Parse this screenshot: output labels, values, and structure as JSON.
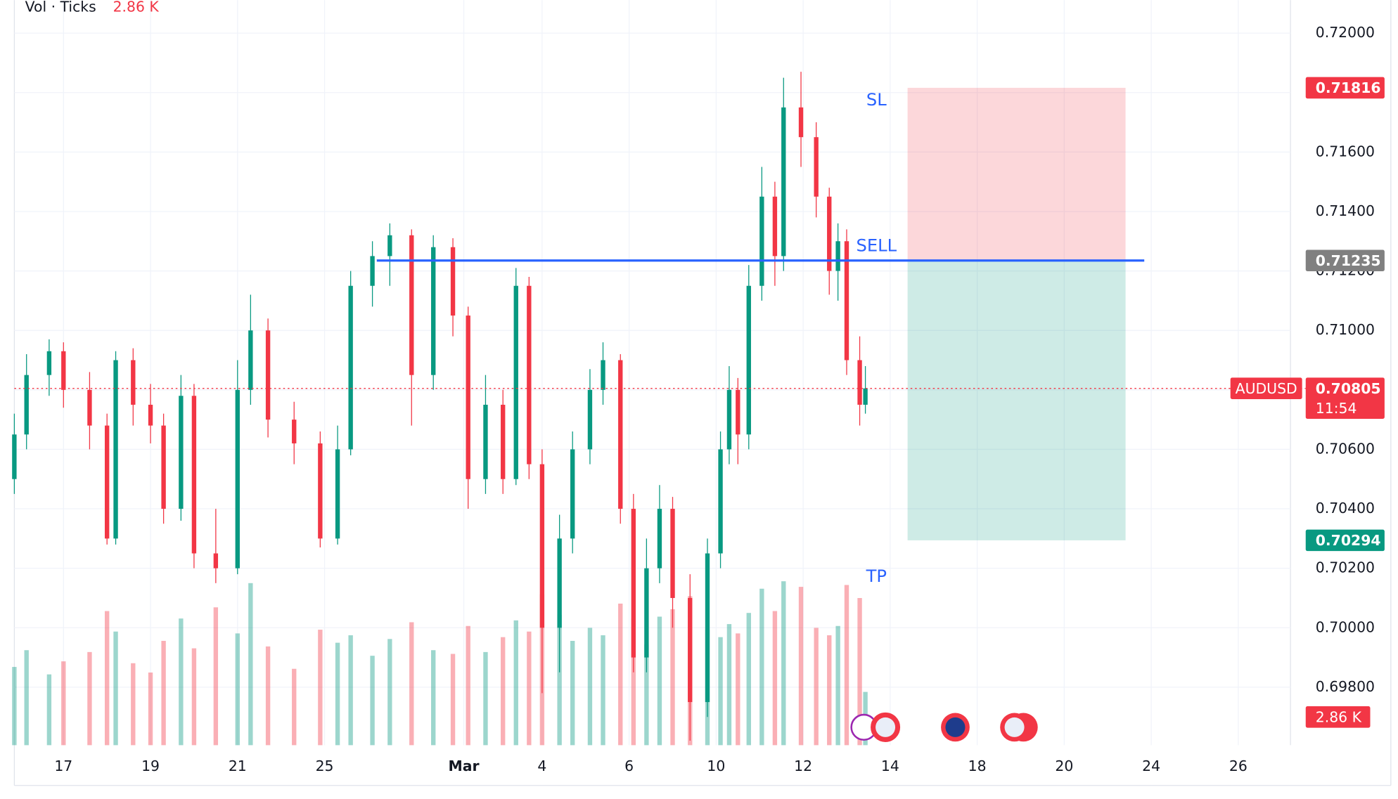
{
  "chart_data": {
    "type": "candlestick",
    "symbol": "AUDUSD",
    "up_color": "#089981",
    "down_color": "#f23645",
    "x": [
      -1.13,
      -0.85,
      -0.33,
      0,
      0.6,
      1,
      1.2,
      1.6,
      2,
      2.3,
      2.7,
      3,
      3.5,
      4,
      4.3,
      4.7,
      5.3,
      5.9,
      6.3,
      6.6,
      7.1,
      7.5,
      8,
      8.5,
      8.95,
      9.3,
      9.7,
      10.1,
      10.4,
      10.7,
      11,
      11.4,
      11.7,
      12.1,
      12.4,
      12.8,
      13.1,
      13.4,
      13.7,
      14,
      14.4,
      14.8,
      15.1,
      15.3,
      15.5,
      15.75,
      16.05,
      16.35,
      16.55,
      16.95,
      17.3,
      17.6,
      17.8,
      18,
      18.3,
      18.43
    ],
    "open": [
      0.705,
      0.7065,
      0.7085,
      0.7093,
      0.708,
      0.7068,
      0.703,
      0.709,
      0.7075,
      0.7068,
      0.704,
      0.7078,
      0.7025,
      0.702,
      0.708,
      0.71,
      0.707,
      0.7062,
      0.703,
      0.706,
      0.7115,
      0.7125,
      0.7132,
      0.7085,
      0.7128,
      0.7105,
      0.705,
      0.7075,
      0.705,
      0.7115,
      0.7055,
      0.7,
      0.703,
      0.706,
      0.708,
      0.709,
      0.704,
      0.699,
      0.702,
      0.704,
      0.701,
      0.6975,
      0.7025,
      0.706,
      0.708,
      0.7065,
      0.7115,
      0.7145,
      0.7125,
      0.7175,
      0.7165,
      0.7145,
      0.712,
      0.713,
      0.709,
      0.7075
    ],
    "high": [
      0.7072,
      0.7092,
      0.7097,
      0.7096,
      0.7086,
      0.7072,
      0.7093,
      0.7094,
      0.7082,
      0.7072,
      0.7085,
      0.7082,
      0.704,
      0.709,
      0.7112,
      0.7104,
      0.7076,
      0.7066,
      0.7068,
      0.712,
      0.713,
      0.7136,
      0.7134,
      0.7132,
      0.7131,
      0.7108,
      0.7085,
      0.708,
      0.7121,
      0.7118,
      0.706,
      0.7038,
      0.7066,
      0.7087,
      0.7096,
      0.7092,
      0.7045,
      0.703,
      0.7048,
      0.7044,
      0.7018,
      0.703,
      0.7066,
      0.7088,
      0.7084,
      0.7122,
      0.7155,
      0.715,
      0.7185,
      0.7187,
      0.717,
      0.7148,
      0.7136,
      0.7134,
      0.7098,
      0.7088
    ],
    "low": [
      0.7045,
      0.706,
      0.7078,
      0.7074,
      0.706,
      0.7028,
      0.7028,
      0.7068,
      0.7062,
      0.7035,
      0.7036,
      0.702,
      0.7015,
      0.7018,
      0.7075,
      0.7064,
      0.7055,
      0.7027,
      0.7028,
      0.7058,
      0.7108,
      0.7115,
      0.7068,
      0.708,
      0.7098,
      0.704,
      0.7045,
      0.7045,
      0.7048,
      0.705,
      0.6978,
      0.6985,
      0.7025,
      0.7055,
      0.7075,
      0.7035,
      0.6985,
      0.6985,
      0.7015,
      0.7,
      0.6962,
      0.697,
      0.702,
      0.7055,
      0.7055,
      0.706,
      0.711,
      0.7115,
      0.712,
      0.7155,
      0.7138,
      0.7112,
      0.711,
      0.7085,
      0.7068,
      0.7072
    ],
    "close": [
      0.7065,
      0.7085,
      0.7093,
      0.708,
      0.7068,
      0.703,
      0.709,
      0.7075,
      0.7068,
      0.704,
      0.7078,
      0.7025,
      0.702,
      0.708,
      0.71,
      0.707,
      0.7062,
      0.703,
      0.706,
      0.7115,
      0.7125,
      0.7132,
      0.7085,
      0.7128,
      0.7105,
      0.705,
      0.7075,
      0.705,
      0.7115,
      0.7055,
      0.7,
      0.703,
      0.706,
      0.708,
      0.709,
      0.704,
      0.699,
      0.702,
      0.704,
      0.701,
      0.6975,
      0.7025,
      0.706,
      0.708,
      0.7065,
      0.7115,
      0.7145,
      0.7125,
      0.7175,
      0.7165,
      0.7145,
      0.712,
      0.713,
      0.709,
      0.7075,
      0.70805
    ],
    "volume": {
      "name": "Vol · Ticks",
      "last_label": "2.86 K",
      "values": [
        4.2,
        5.1,
        3.8,
        4.5,
        5.0,
        7.2,
        6.1,
        4.4,
        3.9,
        5.6,
        6.8,
        5.2,
        7.4,
        6.0,
        8.7,
        5.3,
        4.1,
        6.2,
        5.5,
        5.9,
        4.8,
        5.7,
        6.6,
        5.1,
        4.9,
        6.4,
        5.0,
        5.8,
        6.7,
        6.1,
        8.1,
        7.0,
        5.6,
        6.3,
        5.9,
        7.6,
        6.8,
        5.4,
        6.9,
        7.3,
        8.0,
        6.2,
        5.8,
        6.5,
        6.0,
        7.1,
        8.4,
        7.2,
        8.8,
        8.5,
        6.3,
        5.9,
        6.4,
        8.6,
        7.9,
        2.86
      ]
    },
    "vol_ylim": [
      0,
      40
    ],
    "xlim": [
      -1.13,
      28.2
    ],
    "xticks": [
      {
        "value": 0,
        "label": "17"
      },
      {
        "value": 2,
        "label": "19"
      },
      {
        "value": 4,
        "label": "21"
      },
      {
        "value": 6,
        "label": "25"
      },
      {
        "value": 9.2,
        "label": "Mar"
      },
      {
        "value": 11,
        "label": "4"
      },
      {
        "value": 13,
        "label": "6"
      },
      {
        "value": 15,
        "label": "10"
      },
      {
        "value": 17,
        "label": "12"
      },
      {
        "value": 19,
        "label": "14"
      },
      {
        "value": 21,
        "label": "18"
      },
      {
        "value": 23,
        "label": "20"
      },
      {
        "value": 25,
        "label": "24"
      },
      {
        "value": 27,
        "label": "26"
      }
    ],
    "ylim": [
      0.69605,
      0.72111
    ],
    "yticks": [
      {
        "value": 0.698,
        "label": "0.69800"
      },
      {
        "value": 0.7,
        "label": "0.70000"
      },
      {
        "value": 0.702,
        "label": "0.70200"
      },
      {
        "value": 0.704,
        "label": "0.70400"
      },
      {
        "value": 0.706,
        "label": "0.70600"
      },
      {
        "value": 0.708,
        "label": "0.70800"
      },
      {
        "value": 0.71,
        "label": "0.71000"
      },
      {
        "value": 0.712,
        "label": "0.71200"
      },
      {
        "value": 0.714,
        "label": "0.71400"
      },
      {
        "value": 0.716,
        "label": "0.71600"
      },
      {
        "value": 0.718,
        "label": "0.71800"
      },
      {
        "value": 0.72,
        "label": "0.72000"
      }
    ],
    "grid": true,
    "last_price": 0.70805,
    "countdown": "11:54",
    "position": {
      "entry": 0.71235,
      "stop": 0.71816,
      "target": 0.70294,
      "box_x": [
        19.4,
        24.41
      ],
      "line_x": [
        7.2,
        24.84
      ],
      "entry_label": "SELL",
      "stop_label": "SL",
      "target_label": "TP",
      "line_color": "#2962ff"
    }
  }
}
